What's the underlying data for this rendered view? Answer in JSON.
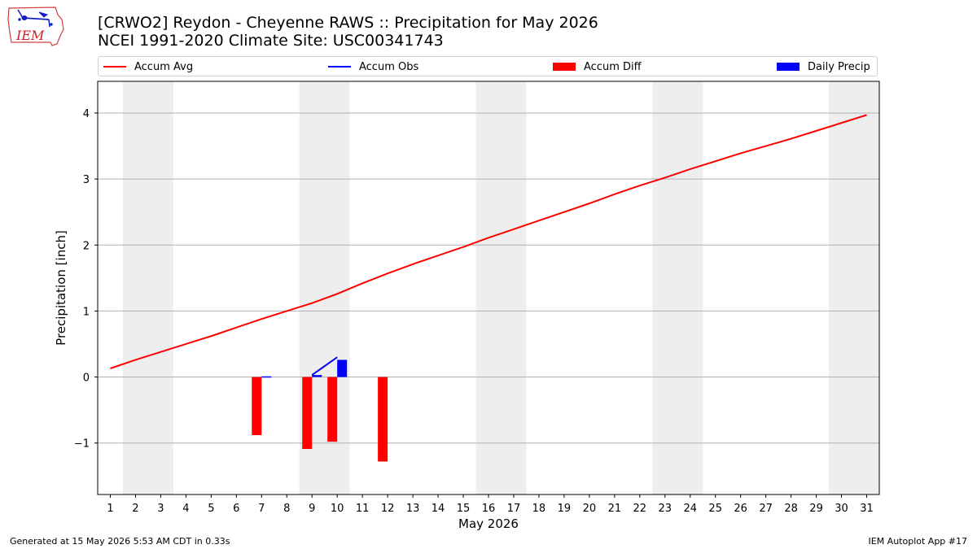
{
  "header": {
    "title_line1": "[CRWO2] Reydon - Cheyenne RAWS :: Precipitation for May 2026",
    "title_line2": "NCEI 1991-2020 Climate Site: USC00341743",
    "logo_text": "IEM"
  },
  "colors": {
    "accum_avg": "#ff0000",
    "accum_obs": "#0000ff",
    "accum_diff": "#ff0000",
    "daily_precip": "#0000ff",
    "weekend_shade": "#eeeeee",
    "grid": "#b0b0b0"
  },
  "footer": {
    "generated": "Generated at 15 May 2026 5:53 AM CDT in 0.33s",
    "app": "IEM Autoplot App #17"
  },
  "chart_data": {
    "type": "line",
    "xlabel": "May 2026",
    "ylabel": "Precipitation [inch]",
    "xlim": [
      0.5,
      31.5
    ],
    "ylim": [
      -1.78,
      4.48
    ],
    "yticks": [
      -1,
      0,
      1,
      2,
      3,
      4
    ],
    "grid": "horizontal",
    "legend_position": "top",
    "x": [
      1,
      2,
      3,
      4,
      5,
      6,
      7,
      8,
      9,
      10,
      11,
      12,
      13,
      14,
      15,
      16,
      17,
      18,
      19,
      20,
      21,
      22,
      23,
      24,
      25,
      26,
      27,
      28,
      29,
      30,
      31
    ],
    "weekend_shading": [
      [
        1.5,
        3.5
      ],
      [
        8.5,
        10.5
      ],
      [
        15.5,
        17.5
      ],
      [
        22.5,
        24.5
      ],
      [
        29.5,
        31.5
      ]
    ],
    "series": [
      {
        "name": "Accum Avg",
        "kind": "line",
        "x": [
          1,
          2,
          3,
          4,
          5,
          6,
          7,
          8,
          9,
          10,
          11,
          12,
          13,
          14,
          15,
          16,
          17,
          18,
          19,
          20,
          21,
          22,
          23,
          24,
          25,
          26,
          27,
          28,
          29,
          30,
          31
        ],
        "values": [
          0.13,
          0.26,
          0.38,
          0.5,
          0.62,
          0.75,
          0.88,
          1.0,
          1.12,
          1.26,
          1.42,
          1.57,
          1.71,
          1.84,
          1.97,
          2.11,
          2.24,
          2.37,
          2.5,
          2.63,
          2.77,
          2.9,
          3.02,
          3.15,
          3.27,
          3.39,
          3.5,
          3.61,
          3.73,
          3.85,
          3.97
        ]
      },
      {
        "name": "Accum Obs",
        "kind": "line",
        "x": [
          9,
          10
        ],
        "values": [
          0.03,
          0.3
        ]
      },
      {
        "name": "Accum Diff",
        "kind": "bar",
        "x": [
          7,
          9,
          10,
          12
        ],
        "values": [
          -0.88,
          -1.09,
          -0.98,
          -1.28
        ]
      },
      {
        "name": "Daily Precip",
        "kind": "bar",
        "x": [
          7,
          9,
          10
        ],
        "values": [
          0.01,
          0.03,
          0.26
        ]
      }
    ]
  }
}
